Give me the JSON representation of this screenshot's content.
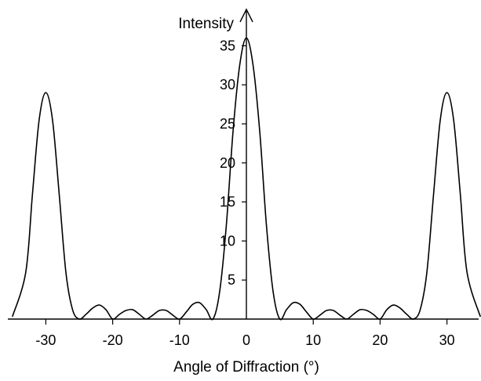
{
  "chart_data": {
    "type": "line",
    "title": "",
    "xlabel": "Angle of Diffraction (°)",
    "ylabel": "Intensity",
    "xlim": [
      -35,
      35
    ],
    "ylim": [
      0,
      37
    ],
    "x_ticks": [
      -30,
      -20,
      -10,
      0,
      10,
      20,
      30
    ],
    "x_tick_labels": [
      "-30",
      "-20",
      "-10",
      "0",
      "10",
      "20",
      "30"
    ],
    "y_ticks": [
      5,
      10,
      15,
      20,
      25,
      30,
      35
    ],
    "y_tick_labels": [
      "5",
      "10",
      "15",
      "20",
      "25",
      "30",
      "35"
    ],
    "grid": false,
    "legend": "none",
    "series": [
      {
        "x": [
          -35,
          -33,
          -32,
          -31,
          -30,
          -29,
          -28,
          -27,
          -26,
          -25,
          -24,
          -23,
          -22,
          -21,
          -20,
          -19,
          -18,
          -17,
          -16,
          -15,
          -14,
          -13,
          -12,
          -11,
          -10,
          -9,
          -8,
          -7,
          -6,
          -5,
          -4,
          -3,
          -2,
          -1,
          0,
          1,
          2,
          3,
          4,
          5,
          6,
          7,
          8,
          9,
          10,
          11,
          12,
          13,
          14,
          15,
          16,
          17,
          18,
          19,
          20,
          21,
          22,
          23,
          24,
          25,
          26,
          27,
          28,
          29,
          30,
          31,
          32,
          33,
          35
        ],
        "y": [
          0.3,
          6,
          16,
          25.5,
          29,
          25.5,
          16,
          6,
          1.2,
          0,
          0.6,
          1.4,
          1.8,
          1.2,
          0,
          0.6,
          1.1,
          1.2,
          0.6,
          0,
          0.5,
          1.1,
          1.1,
          0.5,
          0,
          0.9,
          1.9,
          2.1,
          1.2,
          0,
          3.5,
          12,
          24,
          32.5,
          36,
          32.5,
          24,
          12,
          3.5,
          0,
          1.2,
          2.1,
          1.9,
          0.9,
          0,
          0.5,
          1.1,
          1.1,
          0.5,
          0,
          0.6,
          1.2,
          1.1,
          0.6,
          0,
          1.2,
          1.8,
          1.4,
          0.6,
          0,
          1.2,
          6,
          16,
          25.5,
          29,
          25.5,
          16,
          6,
          0.3
        ],
        "color": "#000000"
      }
    ]
  }
}
